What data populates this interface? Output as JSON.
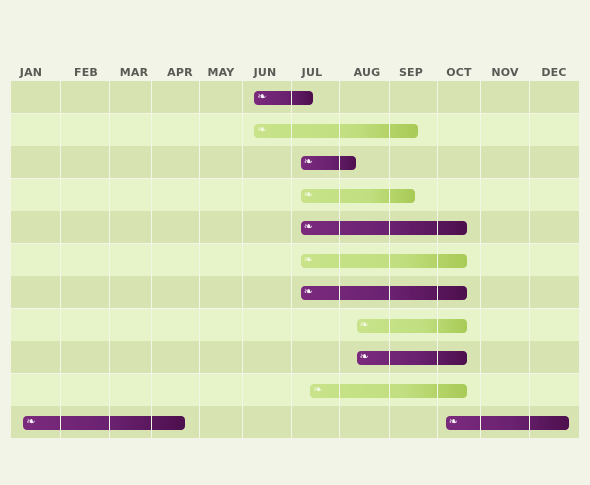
{
  "chart_data": {
    "type": "bar",
    "months": [
      "JAN",
      "FEB",
      "MAR",
      "APR",
      "MAY",
      "JUN",
      "JUL",
      "AUG",
      "SEP",
      "OCT",
      "NOV",
      "DEC"
    ],
    "bar_icon": "leaf-flourish-icon",
    "bar_glyph": "❧",
    "colors": {
      "purple": "#6a2170",
      "green": "#c1df80",
      "row_dark": "#d7e3b1",
      "row_light": "#e7f3c9",
      "background": "#f2f4e8"
    },
    "rows": [
      {
        "bars": [
          {
            "start": 5.25,
            "end": 6.45,
            "color": "purple"
          }
        ]
      },
      {
        "bars": [
          {
            "start": 5.25,
            "end": 8.6,
            "color": "green"
          }
        ]
      },
      {
        "bars": [
          {
            "start": 6.2,
            "end": 7.35,
            "color": "purple"
          }
        ]
      },
      {
        "bars": [
          {
            "start": 6.2,
            "end": 8.55,
            "color": "green"
          }
        ]
      },
      {
        "bars": [
          {
            "start": 6.2,
            "end": 9.7,
            "color": "purple"
          }
        ]
      },
      {
        "bars": [
          {
            "start": 6.2,
            "end": 9.7,
            "color": "green"
          }
        ]
      },
      {
        "bars": [
          {
            "start": 6.2,
            "end": 9.7,
            "color": "purple"
          }
        ]
      },
      {
        "bars": [
          {
            "start": 7.35,
            "end": 9.7,
            "color": "green"
          }
        ]
      },
      {
        "bars": [
          {
            "start": 7.35,
            "end": 9.7,
            "color": "purple"
          }
        ]
      },
      {
        "bars": [
          {
            "start": 6.4,
            "end": 9.7,
            "color": "green"
          }
        ]
      },
      {
        "bars": [
          {
            "start": 0.25,
            "end": 3.7,
            "color": "purple"
          },
          {
            "start": 9.2,
            "end": 11.8,
            "color": "purple"
          }
        ]
      }
    ]
  }
}
